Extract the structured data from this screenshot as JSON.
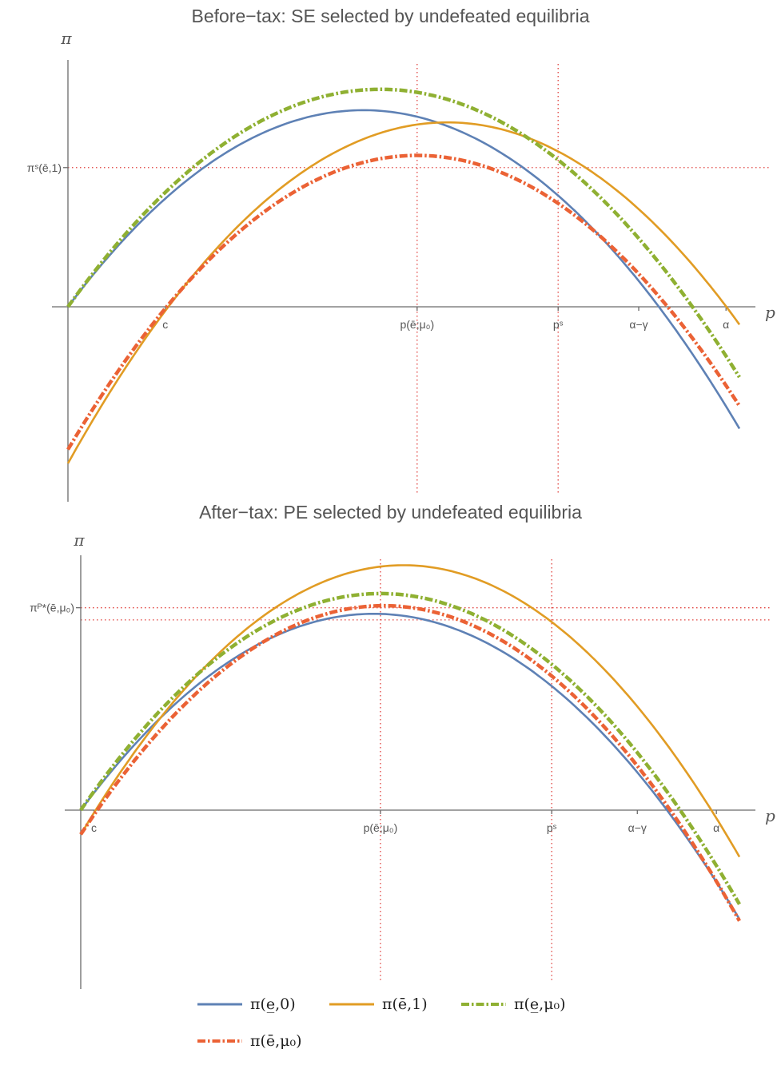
{
  "chart_data": [
    {
      "type": "line",
      "title": "Before−tax: SE selected by undefeated equilibria",
      "xlabel": "p",
      "ylabel": "π",
      "x_ticks": [
        {
          "label": "c",
          "x": 0.145
        },
        {
          "label": "p(ē;μ₀)",
          "x": 0.52
        },
        {
          "label": "pˢ",
          "x": 0.73
        },
        {
          "label": "α−γ",
          "x": 0.85
        },
        {
          "label": "α",
          "x": 0.98
        }
      ],
      "y_ticks": [
        {
          "label": "πˢ(ē,1)",
          "y": 0.8
        }
      ],
      "reference_lines": {
        "vertical": [
          0.52,
          0.73
        ],
        "horizontal": [
          0.8
        ]
      },
      "xlim": [
        0,
        1.0
      ],
      "ylim": [
        -0.92,
        1.35
      ],
      "series": [
        {
          "name": "π(e̲,0)",
          "style": "solid",
          "color": "#5e81b5",
          "vertex_x": 0.44,
          "vertex_y": 1.13,
          "y_at_0": 0.0
        },
        {
          "name": "π(ē,1)",
          "style": "solid",
          "color": "#e19c24",
          "vertex_x": 0.565,
          "vertex_y": 1.06,
          "y_at_0": -0.9
        },
        {
          "name": "π(e̲,μ₀)",
          "style": "dot-dash",
          "color": "#8fb032",
          "vertex_x": 0.465,
          "vertex_y": 1.25,
          "y_at_0": 0.0
        },
        {
          "name": "π(ē,μ₀)",
          "style": "dot-dash",
          "color": "#eb6235",
          "vertex_x": 0.52,
          "vertex_y": 0.87,
          "y_at_0": -0.82
        }
      ]
    },
    {
      "type": "line",
      "title": "After−tax: PE selected by undefeated equilibria",
      "xlabel": "p",
      "ylabel": "π",
      "x_ticks": [
        {
          "label": "c",
          "x": 0.02
        },
        {
          "label": "p(ē;μ₀)",
          "x": 0.455
        },
        {
          "label": "pˢ",
          "x": 0.715
        },
        {
          "label": "α−γ",
          "x": 0.845
        },
        {
          "label": "α",
          "x": 0.965
        }
      ],
      "y_ticks": [
        {
          "label": "πᴾ*(ē,μ₀)",
          "y": 1.0
        }
      ],
      "reference_lines": {
        "vertical": [
          0.455,
          0.715
        ],
        "horizontal": [
          1.0,
          0.94
        ]
      },
      "xlim": [
        0,
        1.0
      ],
      "ylim": [
        -0.85,
        1.2
      ],
      "series": [
        {
          "name": "π(e̲,0)",
          "style": "solid",
          "color": "#5e81b5",
          "vertex_x": 0.445,
          "vertex_y": 0.97,
          "y_at_0": 0.0
        },
        {
          "name": "π(ē,1)",
          "style": "solid",
          "color": "#e19c24",
          "vertex_x": 0.49,
          "vertex_y": 1.21,
          "y_at_0": -0.12
        },
        {
          "name": "π(e̲,μ₀)",
          "style": "dot-dash",
          "color": "#8fb032",
          "vertex_x": 0.455,
          "vertex_y": 1.07,
          "y_at_0": 0.0
        },
        {
          "name": "π(ē,μ₀)",
          "style": "dot-dash",
          "color": "#eb6235",
          "vertex_x": 0.46,
          "vertex_y": 1.01,
          "y_at_0": -0.12
        }
      ]
    }
  ],
  "legend": {
    "placement": "bottom",
    "items": [
      {
        "label": "π(e̲,0)",
        "color": "#5e81b5",
        "style": "solid"
      },
      {
        "label": "π(ē,1)",
        "color": "#e19c24",
        "style": "solid"
      },
      {
        "label": "π(e̲,μ₀)",
        "color": "#8fb032",
        "style": "dot-dash"
      },
      {
        "label": "π(ē,μ₀)",
        "color": "#eb6235",
        "style": "dot-dash"
      }
    ]
  }
}
